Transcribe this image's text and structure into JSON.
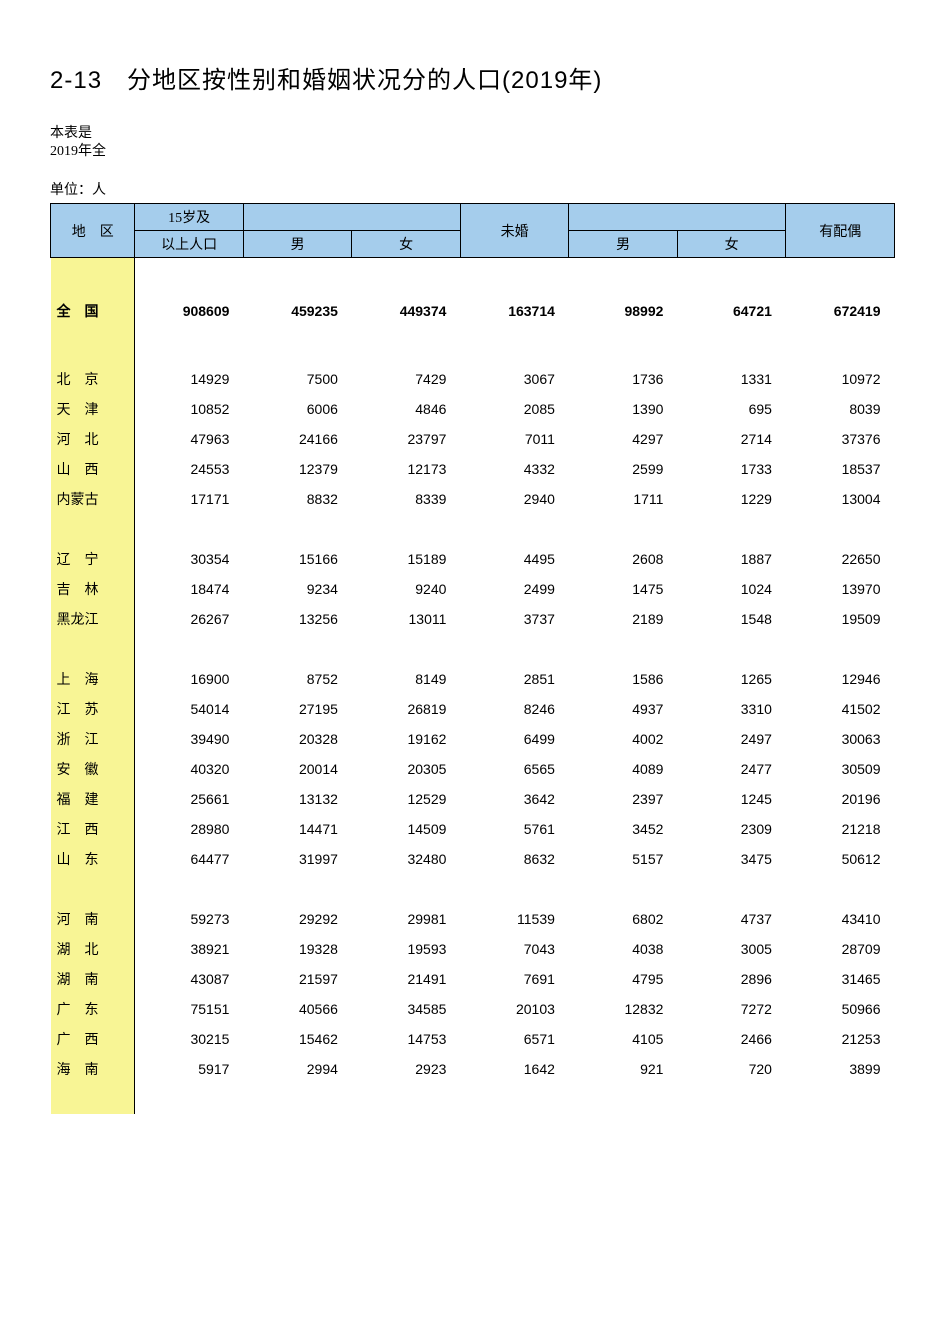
{
  "title": "2-13　分地区按性别和婚姻状况分的人口(2019年)",
  "note_line1": "本表是",
  "note_line2": "2019年全",
  "unit": "单位：人",
  "header": {
    "region": "地　区",
    "pop15_line1": "15岁及",
    "pop15_line2": "以上人口",
    "male": "男",
    "female": "女",
    "unmarried": "未婚",
    "spouse": "有配偶"
  },
  "colors": {
    "header_bg": "#a5cdec",
    "region_bg": "#f8f595",
    "border": "#000000",
    "page_bg": "#ffffff"
  },
  "total": {
    "region": "全　国",
    "values": [
      "908609",
      "459235",
      "449374",
      "163714",
      "98992",
      "64721",
      "672419"
    ]
  },
  "groups": [
    [
      {
        "region": "北　京",
        "values": [
          "14929",
          "7500",
          "7429",
          "3067",
          "1736",
          "1331",
          "10972"
        ]
      },
      {
        "region": "天　津",
        "values": [
          "10852",
          "6006",
          "4846",
          "2085",
          "1390",
          "695",
          "8039"
        ]
      },
      {
        "region": "河　北",
        "values": [
          "47963",
          "24166",
          "23797",
          "7011",
          "4297",
          "2714",
          "37376"
        ]
      },
      {
        "region": "山　西",
        "values": [
          "24553",
          "12379",
          "12173",
          "4332",
          "2599",
          "1733",
          "18537"
        ]
      },
      {
        "region": "内蒙古",
        "values": [
          "17171",
          "8832",
          "8339",
          "2940",
          "1711",
          "1229",
          "13004"
        ]
      }
    ],
    [
      {
        "region": "辽　宁",
        "values": [
          "30354",
          "15166",
          "15189",
          "4495",
          "2608",
          "1887",
          "22650"
        ]
      },
      {
        "region": "吉　林",
        "values": [
          "18474",
          "9234",
          "9240",
          "2499",
          "1475",
          "1024",
          "13970"
        ]
      },
      {
        "region": "黑龙江",
        "values": [
          "26267",
          "13256",
          "13011",
          "3737",
          "2189",
          "1548",
          "19509"
        ]
      }
    ],
    [
      {
        "region": "上　海",
        "values": [
          "16900",
          "8752",
          "8149",
          "2851",
          "1586",
          "1265",
          "12946"
        ]
      },
      {
        "region": "江　苏",
        "values": [
          "54014",
          "27195",
          "26819",
          "8246",
          "4937",
          "3310",
          "41502"
        ]
      },
      {
        "region": "浙　江",
        "values": [
          "39490",
          "20328",
          "19162",
          "6499",
          "4002",
          "2497",
          "30063"
        ]
      },
      {
        "region": "安　徽",
        "values": [
          "40320",
          "20014",
          "20305",
          "6565",
          "4089",
          "2477",
          "30509"
        ]
      },
      {
        "region": "福　建",
        "values": [
          "25661",
          "13132",
          "12529",
          "3642",
          "2397",
          "1245",
          "20196"
        ]
      },
      {
        "region": "江　西",
        "values": [
          "28980",
          "14471",
          "14509",
          "5761",
          "3452",
          "2309",
          "21218"
        ]
      },
      {
        "region": "山　东",
        "values": [
          "64477",
          "31997",
          "32480",
          "8632",
          "5157",
          "3475",
          "50612"
        ]
      }
    ],
    [
      {
        "region": "河　南",
        "values": [
          "59273",
          "29292",
          "29981",
          "11539",
          "6802",
          "4737",
          "43410"
        ]
      },
      {
        "region": "湖　北",
        "values": [
          "38921",
          "19328",
          "19593",
          "7043",
          "4038",
          "3005",
          "28709"
        ]
      },
      {
        "region": "湖　南",
        "values": [
          "43087",
          "21597",
          "21491",
          "7691",
          "4795",
          "2896",
          "31465"
        ]
      },
      {
        "region": "广　东",
        "values": [
          "75151",
          "40566",
          "34585",
          "20103",
          "12832",
          "7272",
          "50966"
        ]
      },
      {
        "region": "广　西",
        "values": [
          "30215",
          "15462",
          "14753",
          "6571",
          "4105",
          "2466",
          "21253"
        ]
      },
      {
        "region": "海　南",
        "values": [
          "5917",
          "2994",
          "2923",
          "1642",
          "921",
          "720",
          "3899"
        ]
      }
    ]
  ]
}
